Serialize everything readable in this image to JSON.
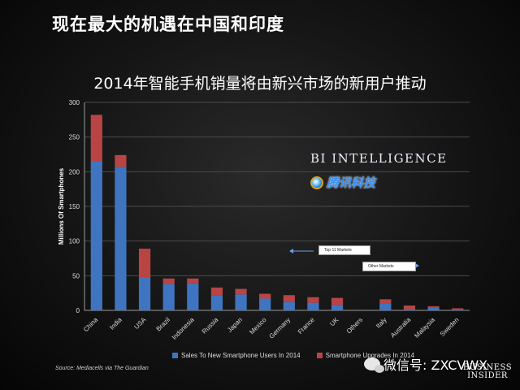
{
  "headline": "现在最大的机遇在中国和印度",
  "chart_data": {
    "type": "bar",
    "stacked": true,
    "title": "2014年智能手机销量将由新兴市场的新用户推动",
    "xlabel": "",
    "ylabel": "Millions Of Smartphones",
    "ylim": [
      0,
      300
    ],
    "yticks": [
      0,
      50,
      100,
      150,
      200,
      250,
      300
    ],
    "grid": true,
    "legend_position": "bottom",
    "categories": [
      "China",
      "India",
      "USA",
      "Brazil",
      "Indonesia",
      "Russia",
      "Japan",
      "Mexico",
      "Germany",
      "France",
      "UK",
      "Others",
      "Italy",
      "Australia",
      "Malaysia",
      "Sweden"
    ],
    "series": [
      {
        "name": "Sales To New Smartphone Users In 2014",
        "color": "#3f75c0",
        "values": [
          215,
          207,
          48,
          38,
          39,
          22,
          23,
          17,
          12,
          11,
          8,
          0,
          10,
          2,
          4,
          1
        ]
      },
      {
        "name": "Smartphone Upgrades In 2014",
        "color": "#b84444",
        "values": [
          67,
          17,
          41,
          8,
          7,
          11,
          8,
          7,
          10,
          8,
          10,
          0,
          6,
          5,
          2,
          2
        ]
      }
    ],
    "annotations": [
      {
        "text": "Top 11 Markets",
        "arrow": "left"
      },
      {
        "text": "Other Markets",
        "arrow": "right"
      }
    ]
  },
  "legend": {
    "series1": "Sales To New Smartphone Users In 2014",
    "series2": "Smartphone Upgrades In 2014"
  },
  "source": "Source: Mediacells via The Guardian",
  "brand_bi_intelligence": "BI INTELLIGENCE",
  "brand_tencent": "腾讯科技",
  "wechat_label": "微信号: ZXCVWX",
  "logo_text": "BUSINESS INSIDER"
}
